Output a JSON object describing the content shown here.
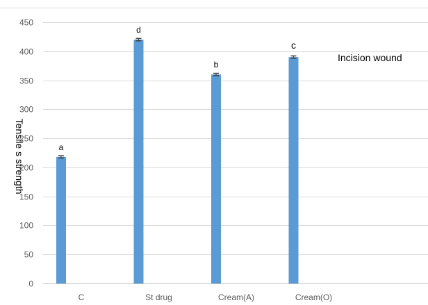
{
  "chart_data": {
    "type": "bar",
    "title": "",
    "xlabel": "",
    "ylabel": "Tensile s  strength",
    "annotation": "Incision  wound",
    "categories": [
      "C",
      "St drug",
      "Cream(A)",
      "Cream(O)"
    ],
    "values": [
      218,
      420,
      360,
      390
    ],
    "errors": [
      2,
      2,
      2,
      2
    ],
    "significance": [
      "a",
      "d",
      "b",
      "c"
    ],
    "ylim": [
      0,
      450
    ],
    "yticks": [
      0,
      50,
      100,
      150,
      200,
      250,
      300,
      350,
      400,
      450
    ],
    "grid": true,
    "legend": "none",
    "bar_color": "#5b9bd5",
    "error_color": "#404040",
    "grid_color": "#d9d9d9"
  }
}
